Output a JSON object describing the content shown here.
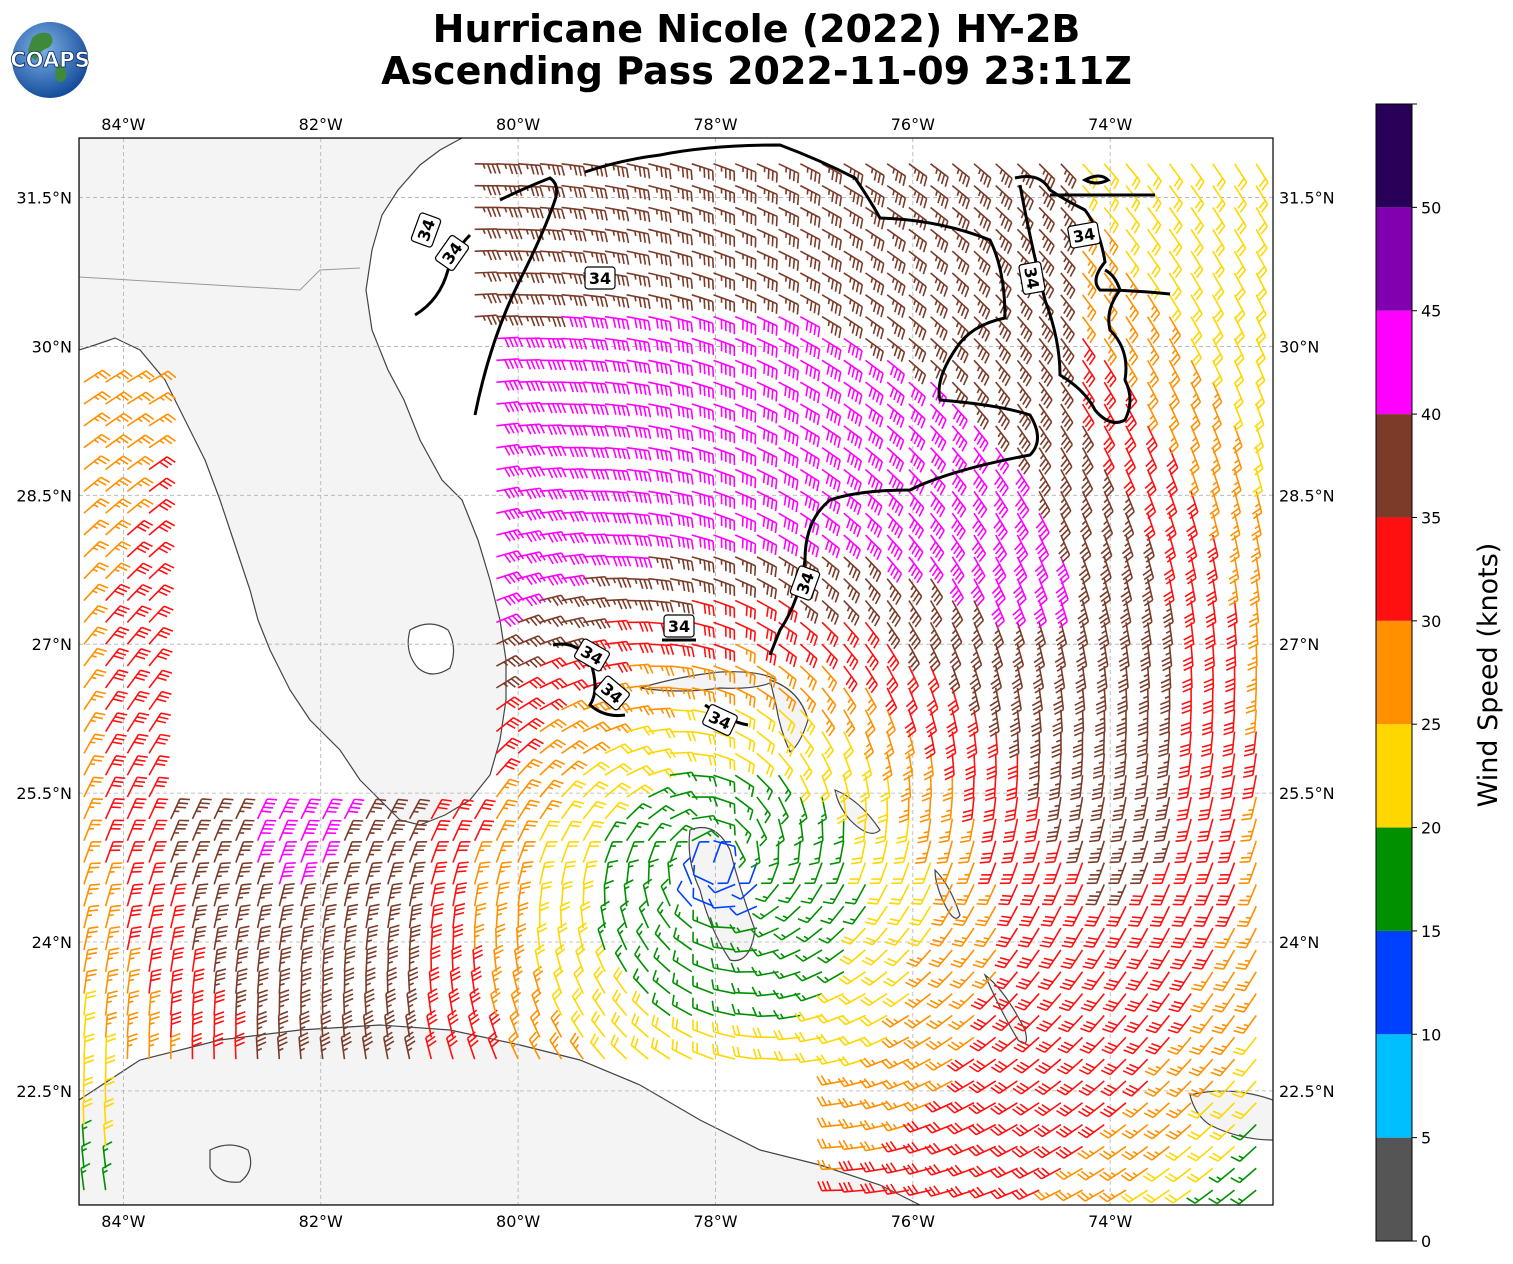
{
  "title": {
    "line1": "Hurricane Nicole (2022) HY-2B",
    "line2": "Ascending Pass 2022-11-09 23:11Z"
  },
  "logo": {
    "text": "COAPS"
  },
  "map": {
    "lon_ticks": [
      "84°W",
      "82°W",
      "80°W",
      "78°W",
      "76°W",
      "74°W"
    ],
    "lat_ticks": [
      "31.5°N",
      "30°N",
      "28.5°N",
      "27°N",
      "25.5°N",
      "24°N",
      "22.5°N"
    ],
    "lon_values": [
      -84,
      -82,
      -80,
      -78,
      -76,
      -74
    ],
    "lat_values": [
      31.5,
      30,
      28.5,
      27,
      25.5,
      24,
      22.5
    ],
    "lon_range": [
      -84.45,
      -72.35
    ],
    "lat_range": [
      21.35,
      32.1
    ],
    "grid": true,
    "contour_label": "34",
    "contour_level_knots": 34,
    "contour_label_count": 10
  },
  "colorbar": {
    "label": "Wind Speed (knots)",
    "ticks": [
      "0",
      "5",
      "10",
      "15",
      "20",
      "25",
      "30",
      "35",
      "40",
      "45",
      "50"
    ],
    "bins": [
      {
        "from": 0,
        "to": 5,
        "color": "#555555"
      },
      {
        "from": 5,
        "to": 10,
        "color": "#00bfff"
      },
      {
        "from": 10,
        "to": 15,
        "color": "#0040ff"
      },
      {
        "from": 15,
        "to": 20,
        "color": "#009000"
      },
      {
        "from": 20,
        "to": 25,
        "color": "#ffd700"
      },
      {
        "from": 25,
        "to": 30,
        "color": "#ff9000"
      },
      {
        "from": 30,
        "to": 35,
        "color": "#ff1010"
      },
      {
        "from": 35,
        "to": 40,
        "color": "#7b3b28"
      },
      {
        "from": 40,
        "to": 45,
        "color": "#ff00ff"
      },
      {
        "from": 45,
        "to": 50,
        "color": "#8000b0"
      },
      {
        "from": 50,
        "to": 55,
        "color": "#280058"
      }
    ]
  },
  "storm_center": {
    "lon": -78.0,
    "lat": 24.8
  }
}
